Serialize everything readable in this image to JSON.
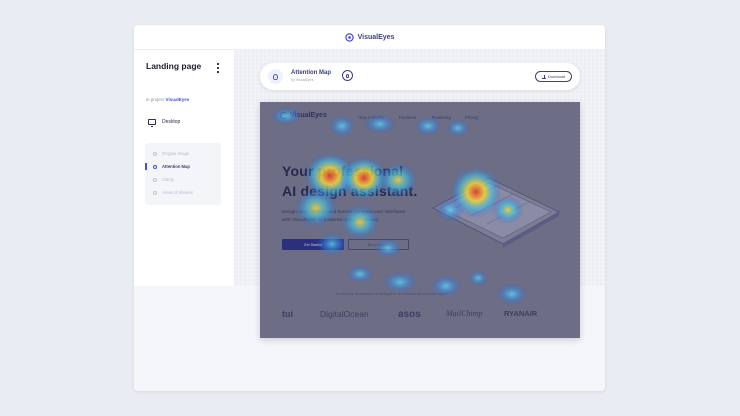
{
  "app": {
    "brand": "VisualEyes",
    "page_title": "Landing page",
    "project_prefix": "in project",
    "project_name": "VisualEyes",
    "device": "Desktop",
    "menu": [
      {
        "label": "Original Image",
        "active": false
      },
      {
        "label": "Attention Map",
        "active": true
      },
      {
        "label": "Clarity",
        "active": false
      },
      {
        "label": "Areas of Interest",
        "active": false
      }
    ]
  },
  "result_bar": {
    "title": "Attention Map",
    "subtitle": "by VisualEyes",
    "download_label": "Download"
  },
  "analyzed_page": {
    "brand": "VisualEyes",
    "nav": [
      "How it Works",
      "Features",
      "Roadmap",
      "Pricing"
    ],
    "headline_line1": "Your professional",
    "headline_line2": "AI design assistant.",
    "body": "Design more efficient and human-centered user interfaces with VisualEyes' AI-powered design assistant.",
    "primary_button": "Get Started",
    "secondary_button": "Book a Demo",
    "trusted_text": "Trusted by thousands of designers and teams around the world",
    "logos": [
      "tui",
      "DigitalOcean",
      "asos",
      "MailChimp",
      "RYANAIR"
    ]
  },
  "colors": {
    "accent": "#4a4fd0",
    "dark_text": "#1b1d33",
    "overlay": "#6d6e85"
  }
}
